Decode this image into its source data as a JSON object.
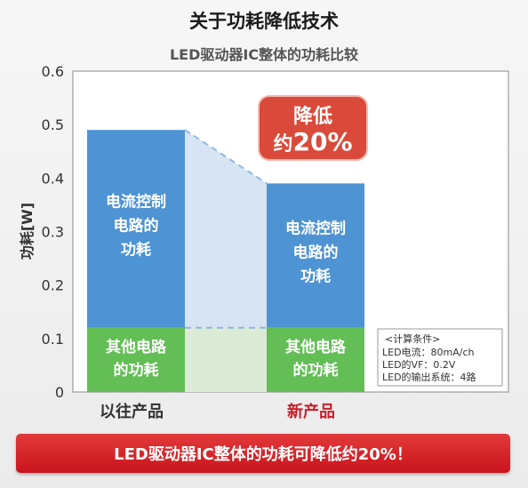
{
  "header": {
    "title": "关于功耗降低技术",
    "subtitle": "LED驱动器IC整体的功耗比较"
  },
  "chart_data": {
    "type": "bar",
    "stacked": true,
    "categories": [
      "以往产品",
      "新产品"
    ],
    "category_colors": [
      "#333333",
      "#c81e28"
    ],
    "ylabel": "功耗[W]",
    "ylim": [
      0,
      0.6
    ],
    "yticks": [
      "0",
      "0.1",
      "0.2",
      "0.3",
      "0.4",
      "0.5",
      "0.6"
    ],
    "series": [
      {
        "name_lines": [
          "其他电路",
          "的功耗"
        ],
        "values": [
          0.12,
          0.12
        ],
        "color": "#62be55"
      },
      {
        "name_lines": [
          "电流控制",
          "电路的",
          "功耗"
        ],
        "values": [
          0.37,
          0.27
        ],
        "color": "#4e93d3"
      }
    ],
    "callout": {
      "line1": "降低",
      "line2_prefix": "约",
      "line2_value": "20%",
      "color": "#d94a3a"
    },
    "conditions": {
      "header": "<计算条件>",
      "lines": [
        "LED电流：80mA/ch",
        "LED的VF：0.2V",
        "LED的输出系统：4路"
      ]
    }
  },
  "footer": {
    "banner": "LED驱动器IC整体的功耗可降低约20%！",
    "color": "#c9141c"
  }
}
